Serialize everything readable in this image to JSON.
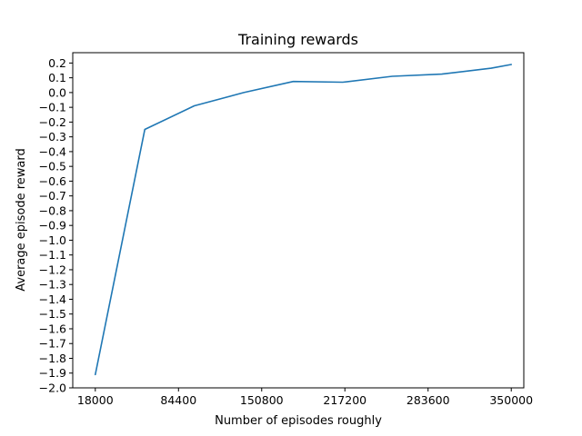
{
  "chart_data": {
    "type": "line",
    "title": "Training rewards",
    "xlabel": "Number of episodes roughly",
    "ylabel": "Average episode reward",
    "xlim": [
      0,
      360000
    ],
    "ylim": [
      -2.0,
      0.27
    ],
    "x_ticks": [
      18000,
      84400,
      150800,
      217200,
      283600,
      350000
    ],
    "x_tick_labels": [
      "18000",
      "84400",
      "150800",
      "217200",
      "283600",
      "350000"
    ],
    "y_ticks": [
      0.2,
      0.1,
      0.0,
      -0.1,
      -0.2,
      -0.3,
      -0.4,
      -0.5,
      -0.6,
      -0.7,
      -0.8,
      -0.9,
      -1.0,
      -1.1,
      -1.2,
      -1.3,
      -1.4,
      -1.5,
      -1.6,
      -1.7,
      -1.8,
      -1.9,
      -2.0
    ],
    "y_tick_labels": [
      "0.2",
      "0.1",
      "0.0",
      "−0.1",
      "−0.2",
      "−0.3",
      "−0.4",
      "−0.5",
      "−0.6",
      "−0.7",
      "−0.8",
      "−0.9",
      "−1.0",
      "−1.1",
      "−1.2",
      "−1.3",
      "−1.4",
      "−1.5",
      "−1.6",
      "−1.7",
      "−1.8",
      "−1.9",
      "−2.0"
    ],
    "grid": false,
    "line_color": "#1f77b4",
    "series": [
      {
        "x": [
          18000,
          57500,
          97000,
          136500,
          176000,
          215500,
          255000,
          294500,
          334000,
          350000
        ],
        "values": [
          -1.91,
          -0.25,
          -0.09,
          0.0,
          0.075,
          0.07,
          0.11,
          0.125,
          0.165,
          0.19
        ]
      }
    ]
  }
}
